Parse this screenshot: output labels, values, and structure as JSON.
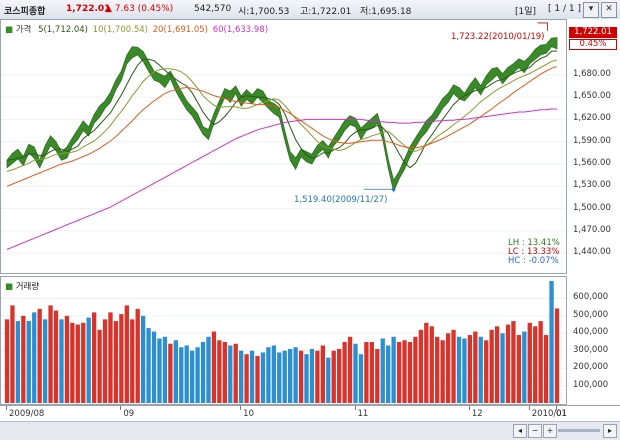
{
  "header": {
    "name": "코스피종합",
    "price": "1,722.01",
    "change": "▲  7.63 (0.45%)",
    "volume": "542,570",
    "open": "시:1,700.53",
    "high": "고:1,722.01",
    "low": "저:1,695.18",
    "period": "[1일]",
    "page": "[ 1 / 1 ]"
  },
  "legend": {
    "price_label": "가격",
    "ma5": "5(1,712.04)",
    "ma10": "10(1,700.54)",
    "ma20": "20(1,691.05)",
    "ma60": "60(1,633.98)",
    "volume_label": "거래량"
  },
  "annotations": {
    "high": "1,723.22(2010/01/19)",
    "low": "1,519.40(2009/11/27)",
    "lh": "LH : 13.41%",
    "lc": "LC : 13.33%",
    "hc": "HC : -0.07%"
  },
  "price_axis": {
    "current": "1,722.01",
    "pct": "0.45%",
    "ticks": [
      "1,680.00",
      "1,650.00",
      "1,620.00",
      "1,590.00",
      "1,560.00",
      "1,530.00",
      "1,500.00",
      "1,470.00",
      "1,440.00"
    ]
  },
  "volume_axis": {
    "ticks": [
      "600,000",
      "500,000",
      "400,000",
      "300,000",
      "200,000",
      "100,000"
    ]
  },
  "x_axis": {
    "ticks": [
      "2009/08",
      "09",
      "10",
      "11",
      "12",
      "2010/01",
      "01"
    ]
  },
  "colors": {
    "candle": "#3a8a2a",
    "ma5": "#2a5a14",
    "ma10": "#8a9a2a",
    "ma20": "#e05a1a",
    "ma60": "#cc33cc",
    "vol_up": "#d9342b",
    "vol_down": "#2b8fd1",
    "header_up": "#d00000"
  },
  "chart_data": [
    {
      "type": "line",
      "title": "코스피종합",
      "ylim": [
        1420,
        1735
      ],
      "series": [
        {
          "name": "가격",
          "values": [
            1560,
            1568,
            1572,
            1565,
            1580,
            1575,
            1560,
            1578,
            1590,
            1585,
            1570,
            1575,
            1590,
            1600,
            1610,
            1605,
            1620,
            1630,
            1640,
            1650,
            1665,
            1680,
            1700,
            1710,
            1712,
            1705,
            1690,
            1680,
            1675,
            1670,
            1680,
            1665,
            1650,
            1640,
            1630,
            1620,
            1605,
            1600,
            1620,
            1640,
            1655,
            1650,
            1660,
            1645,
            1652,
            1648,
            1655,
            1650,
            1640,
            1635,
            1628,
            1600,
            1570,
            1560,
            1575,
            1570,
            1565,
            1580,
            1585,
            1575,
            1590,
            1600,
            1610,
            1620,
            1615,
            1600,
            1610,
            1615,
            1620,
            1600,
            1560,
            1530,
            1545,
            1560,
            1575,
            1590,
            1600,
            1610,
            1620,
            1630,
            1640,
            1650,
            1660,
            1655,
            1650,
            1660,
            1668,
            1660,
            1672,
            1680,
            1685,
            1675,
            1682,
            1690,
            1695,
            1690,
            1700,
            1708,
            1712,
            1716,
            1723,
            1722
          ]
        },
        {
          "name": "5",
          "values": [
            1565,
            1566,
            1568,
            1569,
            1573,
            1574,
            1571,
            1572,
            1577,
            1580,
            1580,
            1577,
            1580,
            1584,
            1594,
            1600,
            1605,
            1613,
            1621,
            1629,
            1641,
            1653,
            1667,
            1681,
            1693,
            1701,
            1701,
            1699,
            1693,
            1686,
            1680,
            1674,
            1669,
            1665,
            1656,
            1643,
            1630,
            1620,
            1613,
            1617,
            1624,
            1633,
            1643,
            1650,
            1652,
            1651,
            1650,
            1650,
            1648,
            1646,
            1640,
            1628,
            1610,
            1593,
            1581,
            1572,
            1568,
            1570,
            1575,
            1575,
            1579,
            1582,
            1588,
            1597,
            1603,
            1606,
            1606,
            1608,
            1612,
            1609,
            1601,
            1587,
            1574,
            1562,
            1555,
            1561,
            1574,
            1589,
            1599,
            1610,
            1620,
            1630,
            1640,
            1647,
            1652,
            1655,
            1659,
            1660,
            1663,
            1668,
            1672,
            1674,
            1678,
            1682,
            1685,
            1687,
            1690,
            1697,
            1702,
            1705,
            1712,
            1712
          ]
        },
        {
          "name": "10",
          "values": [
            1550,
            1552,
            1555,
            1558,
            1561,
            1565,
            1566,
            1567,
            1570,
            1573,
            1574,
            1575,
            1576,
            1578,
            1583,
            1587,
            1591,
            1597,
            1604,
            1612,
            1622,
            1631,
            1641,
            1652,
            1661,
            1671,
            1678,
            1684,
            1687,
            1688,
            1688,
            1687,
            1684,
            1679,
            1671,
            1662,
            1652,
            1645,
            1639,
            1636,
            1637,
            1637,
            1637,
            1635,
            1635,
            1637,
            1640,
            1643,
            1645,
            1648,
            1646,
            1639,
            1630,
            1621,
            1613,
            1606,
            1598,
            1590,
            1584,
            1582,
            1580,
            1578,
            1580,
            1584,
            1589,
            1593,
            1595,
            1598,
            1600,
            1603,
            1604,
            1598,
            1591,
            1585,
            1579,
            1577,
            1580,
            1585,
            1590,
            1597,
            1602,
            1607,
            1613,
            1618,
            1624,
            1630,
            1637,
            1644,
            1649,
            1655,
            1660,
            1664,
            1668,
            1672,
            1676,
            1679,
            1682,
            1686,
            1690,
            1694,
            1698,
            1700
          ]
        },
        {
          "name": "20",
          "values": [
            1530,
            1533,
            1536,
            1539,
            1542,
            1545,
            1548,
            1551,
            1554,
            1557,
            1560,
            1562,
            1564,
            1567,
            1570,
            1573,
            1577,
            1581,
            1586,
            1591,
            1597,
            1604,
            1611,
            1618,
            1626,
            1633,
            1639,
            1645,
            1650,
            1655,
            1658,
            1660,
            1662,
            1663,
            1662,
            1660,
            1658,
            1655,
            1652,
            1650,
            1648,
            1646,
            1644,
            1643,
            1642,
            1641,
            1640,
            1640,
            1639,
            1638,
            1636,
            1632,
            1628,
            1623,
            1618,
            1613,
            1608,
            1603,
            1598,
            1594,
            1591,
            1589,
            1588,
            1588,
            1589,
            1590,
            1591,
            1592,
            1592,
            1592,
            1590,
            1588,
            1585,
            1583,
            1582,
            1582,
            1583,
            1585,
            1588,
            1591,
            1594,
            1598,
            1602,
            1606,
            1610,
            1614,
            1619,
            1624,
            1629,
            1634,
            1640,
            1645,
            1650,
            1656,
            1661,
            1666,
            1671,
            1676,
            1681,
            1685,
            1689,
            1691
          ]
        },
        {
          "name": "60",
          "values": [
            1445,
            1448,
            1451,
            1454,
            1457,
            1460,
            1463,
            1466,
            1469,
            1472,
            1475,
            1478,
            1481,
            1484,
            1487,
            1490,
            1493,
            1496,
            1499,
            1502,
            1506,
            1510,
            1514,
            1518,
            1522,
            1526,
            1530,
            1534,
            1538,
            1542,
            1546,
            1550,
            1554,
            1558,
            1562,
            1566,
            1570,
            1574,
            1578,
            1582,
            1586,
            1590,
            1594,
            1597,
            1600,
            1603,
            1606,
            1608,
            1610,
            1612,
            1614,
            1616,
            1617,
            1618,
            1619,
            1620,
            1620,
            1620,
            1620,
            1620,
            1620,
            1620,
            1620,
            1620,
            1620,
            1620,
            1619,
            1618,
            1617,
            1617,
            1616,
            1616,
            1615,
            1615,
            1615,
            1616,
            1616,
            1617,
            1617,
            1618,
            1618,
            1619,
            1619,
            1620,
            1620,
            1621,
            1622,
            1623,
            1624,
            1625,
            1626,
            1627,
            1628,
            1629,
            1630,
            1630,
            1631,
            1632,
            1633,
            1633,
            1634,
            1634
          ]
        }
      ]
    },
    {
      "type": "bar",
      "title": "거래량",
      "ylim": [
        0,
        700000
      ],
      "values": [
        480000,
        560000,
        470000,
        500000,
        470000,
        520000,
        540000,
        480000,
        560000,
        530000,
        480000,
        500000,
        460000,
        450000,
        460000,
        490000,
        520000,
        420000,
        480000,
        520000,
        470000,
        510000,
        560000,
        480000,
        540000,
        500000,
        430000,
        410000,
        370000,
        380000,
        340000,
        360000,
        320000,
        330000,
        300000,
        320000,
        350000,
        380000,
        410000,
        360000,
        350000,
        330000,
        340000,
        300000,
        280000,
        300000,
        270000,
        290000,
        320000,
        330000,
        290000,
        300000,
        310000,
        320000,
        300000,
        280000,
        310000,
        300000,
        330000,
        260000,
        300000,
        310000,
        350000,
        380000,
        340000,
        280000,
        350000,
        350000,
        310000,
        370000,
        330000,
        380000,
        350000,
        360000,
        350000,
        380000,
        420000,
        460000,
        440000,
        380000,
        360000,
        400000,
        420000,
        380000,
        370000,
        390000,
        410000,
        380000,
        360000,
        420000,
        440000,
        400000,
        450000,
        470000,
        390000,
        410000,
        460000,
        440000,
        470000,
        390000,
        700000,
        542570
      ],
      "up": [
        1,
        1,
        0,
        1,
        0,
        0,
        1,
        0,
        1,
        1,
        0,
        1,
        1,
        1,
        1,
        0,
        1,
        1,
        1,
        1,
        1,
        1,
        1,
        1,
        1,
        0,
        0,
        0,
        0,
        0,
        1,
        0,
        0,
        0,
        0,
        0,
        0,
        0,
        1,
        1,
        1,
        0,
        1,
        0,
        1,
        0,
        1,
        0,
        0,
        0,
        0,
        0,
        0,
        0,
        1,
        0,
        0,
        1,
        1,
        0,
        1,
        1,
        1,
        1,
        0,
        0,
        1,
        1,
        1,
        0,
        0,
        0,
        1,
        1,
        1,
        1,
        1,
        1,
        1,
        1,
        1,
        1,
        1,
        0,
        0,
        1,
        1,
        0,
        1,
        1,
        1,
        0,
        1,
        1,
        1,
        0,
        1,
        1,
        1,
        1,
        0,
        1
      ]
    }
  ]
}
